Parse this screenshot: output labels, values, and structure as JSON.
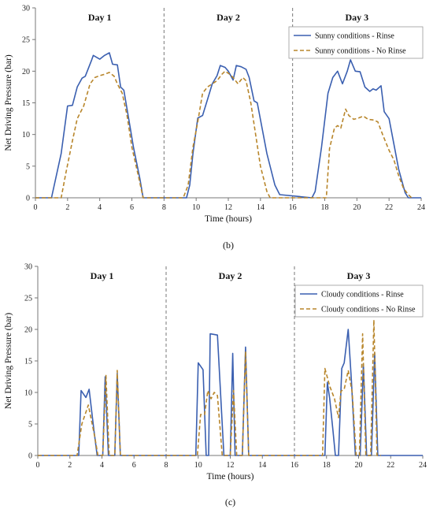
{
  "chart_data": [
    {
      "type": "line",
      "panel_label": "(b)",
      "xlabel": "Time (hours)",
      "ylabel": "Net Driving Pressure (bar)",
      "xlim": [
        0,
        24
      ],
      "ylim": [
        0,
        30
      ],
      "xticks": [
        0,
        2,
        4,
        6,
        8,
        10,
        12,
        14,
        16,
        18,
        20,
        22,
        24
      ],
      "yticks": [
        0,
        5,
        10,
        15,
        20,
        25,
        30
      ],
      "grid": false,
      "day_dividers": [
        8,
        16
      ],
      "day_labels": [
        {
          "text": "Day 1",
          "x": 4
        },
        {
          "text": "Day 2",
          "x": 12
        },
        {
          "text": "Day 3",
          "x": 20
        }
      ],
      "legend": "top-right",
      "series": [
        {
          "name": "Sunny conditions - Rinse",
          "color": "#3a5fb0",
          "dash": "solid",
          "points": [
            [
              0,
              0
            ],
            [
              1,
              0
            ],
            [
              1.6,
              7
            ],
            [
              2,
              14.5
            ],
            [
              2.3,
              14.6
            ],
            [
              2.6,
              17.5
            ],
            [
              2.9,
              18.9
            ],
            [
              3.1,
              19.2
            ],
            [
              3.5,
              21.8
            ],
            [
              3.6,
              22.5
            ],
            [
              4,
              21.9
            ],
            [
              4.3,
              22.5
            ],
            [
              4.6,
              22.9
            ],
            [
              4.8,
              21.1
            ],
            [
              5.1,
              21
            ],
            [
              5.3,
              17.5
            ],
            [
              5.5,
              17
            ],
            [
              5.9,
              11
            ],
            [
              6.1,
              8
            ],
            [
              6.5,
              3
            ],
            [
              6.7,
              0
            ],
            [
              9.4,
              0
            ],
            [
              9.6,
              2
            ],
            [
              9.8,
              7
            ],
            [
              10.1,
              12.6
            ],
            [
              10.4,
              13
            ],
            [
              10.7,
              15.5
            ],
            [
              11,
              18
            ],
            [
              11.3,
              19.3
            ],
            [
              11.5,
              20.9
            ],
            [
              11.8,
              20.6
            ],
            [
              12,
              20
            ],
            [
              12.3,
              18.6
            ],
            [
              12.5,
              20.9
            ],
            [
              12.8,
              20.7
            ],
            [
              13.1,
              20.3
            ],
            [
              13.3,
              19
            ],
            [
              13.6,
              15.3
            ],
            [
              13.8,
              15
            ],
            [
              14.1,
              11
            ],
            [
              14.4,
              7
            ],
            [
              14.9,
              2
            ],
            [
              15.2,
              0.5
            ],
            [
              17.2,
              0
            ],
            [
              17.4,
              1
            ],
            [
              17.8,
              8
            ],
            [
              18.2,
              16.5
            ],
            [
              18.5,
              19
            ],
            [
              18.8,
              20
            ],
            [
              19.1,
              18
            ],
            [
              19.4,
              20
            ],
            [
              19.6,
              21.8
            ],
            [
              19.9,
              20
            ],
            [
              20.2,
              19.9
            ],
            [
              20.5,
              17.5
            ],
            [
              20.8,
              16.8
            ],
            [
              21,
              17.2
            ],
            [
              21.2,
              17
            ],
            [
              21.5,
              17.7
            ],
            [
              21.7,
              13.6
            ],
            [
              22,
              12.5
            ],
            [
              22.3,
              8.5
            ],
            [
              22.6,
              4.5
            ],
            [
              23,
              0.8
            ],
            [
              23.2,
              0
            ],
            [
              24,
              0
            ]
          ]
        },
        {
          "name": "Sunny conditions - No Rinse",
          "color": "#b8862b",
          "dash": "dashed",
          "points": [
            [
              0,
              0
            ],
            [
              1.6,
              0
            ],
            [
              1.9,
              4
            ],
            [
              2.3,
              9
            ],
            [
              2.6,
              12.5
            ],
            [
              3,
              14.5
            ],
            [
              3.4,
              18
            ],
            [
              3.7,
              19
            ],
            [
              4,
              19.3
            ],
            [
              4.3,
              19.5
            ],
            [
              4.6,
              19.8
            ],
            [
              4.9,
              19.2
            ],
            [
              5.1,
              18
            ],
            [
              5.4,
              16.5
            ],
            [
              5.7,
              13
            ],
            [
              6,
              8
            ],
            [
              6.4,
              3.5
            ],
            [
              6.7,
              0
            ],
            [
              9.2,
              0
            ],
            [
              9.5,
              2
            ],
            [
              9.8,
              8
            ],
            [
              10.1,
              12
            ],
            [
              10.4,
              16.5
            ],
            [
              10.7,
              17.5
            ],
            [
              11,
              18
            ],
            [
              11.3,
              18.5
            ],
            [
              11.6,
              19.5
            ],
            [
              11.8,
              20
            ],
            [
              12.1,
              19.5
            ],
            [
              12.3,
              19
            ],
            [
              12.6,
              18
            ],
            [
              12.9,
              19
            ],
            [
              13.1,
              18.5
            ],
            [
              13.4,
              15
            ],
            [
              13.7,
              10
            ],
            [
              14,
              5
            ],
            [
              14.4,
              1
            ],
            [
              14.6,
              0
            ],
            [
              18.1,
              0
            ],
            [
              18.3,
              7.8
            ],
            [
              18.6,
              11
            ],
            [
              18.8,
              11.4
            ],
            [
              19,
              11
            ],
            [
              19.3,
              14
            ],
            [
              19.5,
              13
            ],
            [
              19.8,
              12.4
            ],
            [
              20.1,
              12.6
            ],
            [
              20.4,
              12.9
            ],
            [
              20.7,
              12.4
            ],
            [
              21,
              12.3
            ],
            [
              21.3,
              12
            ],
            [
              21.6,
              10
            ],
            [
              22,
              7.5
            ],
            [
              22.3,
              6
            ],
            [
              22.6,
              3.5
            ],
            [
              22.9,
              1.5
            ],
            [
              23.2,
              0.5
            ],
            [
              23.4,
              0
            ]
          ]
        }
      ]
    },
    {
      "type": "line",
      "panel_label": "(c)",
      "xlabel": "Time (hours)",
      "ylabel": "Net Driving Pressure (bar)",
      "xlim": [
        0,
        24
      ],
      "ylim": [
        0,
        30
      ],
      "xticks": [
        0,
        2,
        4,
        6,
        8,
        10,
        12,
        14,
        16,
        18,
        20,
        22,
        24
      ],
      "yticks": [
        0,
        5,
        10,
        15,
        20,
        25,
        30
      ],
      "grid": false,
      "day_dividers": [
        8,
        16
      ],
      "day_labels": [
        {
          "text": "Day 1",
          "x": 4
        },
        {
          "text": "Day 2",
          "x": 12
        },
        {
          "text": "Day 3",
          "x": 20
        }
      ],
      "legend": "top-right",
      "series": [
        {
          "name": "Cloudy conditions - Rinse",
          "color": "#3a5fb0",
          "dash": "solid",
          "points": [
            [
              0,
              0
            ],
            [
              2.55,
              0
            ],
            [
              2.7,
              10.3
            ],
            [
              3,
              9.2
            ],
            [
              3.2,
              10.5
            ],
            [
              3.5,
              4
            ],
            [
              3.7,
              0
            ],
            [
              4.05,
              0
            ],
            [
              4.2,
              12.5
            ],
            [
              4.4,
              0
            ],
            [
              4.8,
              0
            ],
            [
              4.95,
              13
            ],
            [
              5.15,
              0
            ],
            [
              9.85,
              0
            ],
            [
              10,
              14.7
            ],
            [
              10.3,
              13.6
            ],
            [
              10.5,
              0
            ],
            [
              10.65,
              0
            ],
            [
              10.75,
              19.3
            ],
            [
              11.2,
              19.1
            ],
            [
              11.6,
              0
            ],
            [
              12,
              0
            ],
            [
              12.15,
              16.2
            ],
            [
              12.3,
              0
            ],
            [
              12.75,
              0
            ],
            [
              12.95,
              17.2
            ],
            [
              13.15,
              0
            ],
            [
              17.9,
              0
            ],
            [
              18.05,
              11.6
            ],
            [
              18.2,
              9
            ],
            [
              18.4,
              4
            ],
            [
              18.55,
              0
            ],
            [
              18.75,
              0
            ],
            [
              18.95,
              13.8
            ],
            [
              19.1,
              14.7
            ],
            [
              19.35,
              20
            ],
            [
              19.55,
              12
            ],
            [
              19.8,
              0
            ],
            [
              20.1,
              0
            ],
            [
              20.3,
              14.5
            ],
            [
              20.5,
              0
            ],
            [
              20.8,
              0
            ],
            [
              21,
              16.3
            ],
            [
              21.2,
              0
            ],
            [
              24,
              0
            ]
          ]
        },
        {
          "name": "Cloudy conditions - No Rinse",
          "color": "#b8862b",
          "dash": "dashed",
          "points": [
            [
              0,
              0
            ],
            [
              2.45,
              0
            ],
            [
              2.75,
              5
            ],
            [
              3.15,
              8
            ],
            [
              3.55,
              3
            ],
            [
              3.75,
              0
            ],
            [
              4.05,
              0
            ],
            [
              4.25,
              12.7
            ],
            [
              4.45,
              0
            ],
            [
              4.8,
              0
            ],
            [
              4.95,
              13.5
            ],
            [
              5.15,
              0
            ],
            [
              9.95,
              0
            ],
            [
              10.15,
              6.5
            ],
            [
              10.4,
              6.5
            ],
            [
              10.6,
              10.3
            ],
            [
              10.8,
              9
            ],
            [
              11,
              10
            ],
            [
              11.2,
              9.5
            ],
            [
              11.5,
              0
            ],
            [
              12,
              0
            ],
            [
              12.2,
              10.3
            ],
            [
              12.4,
              0
            ],
            [
              12.75,
              0
            ],
            [
              12.95,
              16.5
            ],
            [
              13.15,
              0
            ],
            [
              17.75,
              0
            ],
            [
              17.9,
              13.8
            ],
            [
              18.2,
              11
            ],
            [
              18.5,
              9
            ],
            [
              18.75,
              6
            ],
            [
              18.9,
              10.2
            ],
            [
              19.1,
              10.5
            ],
            [
              19.35,
              13.5
            ],
            [
              19.6,
              10
            ],
            [
              19.85,
              0
            ],
            [
              20.05,
              0
            ],
            [
              20.25,
              19.3
            ],
            [
              20.45,
              0
            ],
            [
              20.75,
              0
            ],
            [
              20.95,
              21.5
            ],
            [
              21.15,
              0
            ],
            [
              21.4,
              0
            ]
          ]
        }
      ]
    }
  ]
}
